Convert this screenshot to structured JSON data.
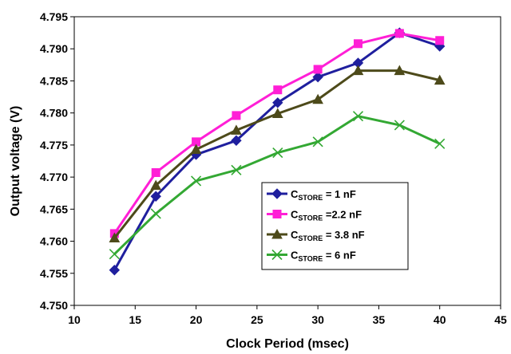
{
  "chart_data": {
    "type": "line",
    "xlabel": "Clock Period (msec)",
    "ylabel": "Output voltage (V)",
    "xlim": [
      10,
      45
    ],
    "ylim": [
      4.75,
      4.795
    ],
    "xticks": [
      "10",
      "15",
      "20",
      "25",
      "30",
      "35",
      "40",
      "45"
    ],
    "yticks": [
      "4.750",
      "4.755",
      "4.760",
      "4.765",
      "4.770",
      "4.775",
      "4.780",
      "4.785",
      "4.790",
      "4.795"
    ],
    "grid": false,
    "legend_position": "bottom-right",
    "series": [
      {
        "label_main": "C",
        "label_sub": "STORE",
        "label_rest": " = 1 nF",
        "color": "#1f1f9e",
        "marker": "diamond",
        "x": [
          13.3,
          16.7,
          20,
          23.3,
          26.7,
          30,
          33.3,
          36.7,
          40
        ],
        "y": [
          4.7555,
          4.767,
          4.7735,
          4.7757,
          4.7816,
          4.7856,
          4.7878,
          4.7925,
          4.7904
        ]
      },
      {
        "label_main": "C",
        "label_sub": "STORE",
        "label_rest": " =2.2 nF",
        "color": "#ff1fd6",
        "marker": "square",
        "x": [
          13.3,
          16.7,
          20,
          23.3,
          26.7,
          30,
          33.3,
          36.7,
          40
        ],
        "y": [
          4.7612,
          4.7707,
          4.7755,
          4.7796,
          4.7836,
          4.7868,
          4.7908,
          4.7924,
          4.7913
        ]
      },
      {
        "label_main": "C",
        "label_sub": "STORE",
        "label_rest": " = 3.8 nF",
        "color": "#4d4a1a",
        "marker": "triangle",
        "x": [
          13.3,
          16.7,
          20,
          23.3,
          26.7,
          30,
          33.3,
          36.7,
          40
        ],
        "y": [
          4.7605,
          4.7687,
          4.7743,
          4.7773,
          4.7799,
          4.7821,
          4.7866,
          4.7866,
          4.7851
        ]
      },
      {
        "label_main": "C",
        "label_sub": "STORE",
        "label_rest": " = 6 nF",
        "color": "#33a833",
        "marker": "x",
        "x": [
          13.3,
          16.7,
          20,
          23.3,
          26.7,
          30,
          33.3,
          36.7,
          40
        ],
        "y": [
          4.758,
          4.7643,
          4.7694,
          4.7711,
          4.7738,
          4.7755,
          4.7795,
          4.7781,
          4.7752
        ]
      }
    ]
  }
}
